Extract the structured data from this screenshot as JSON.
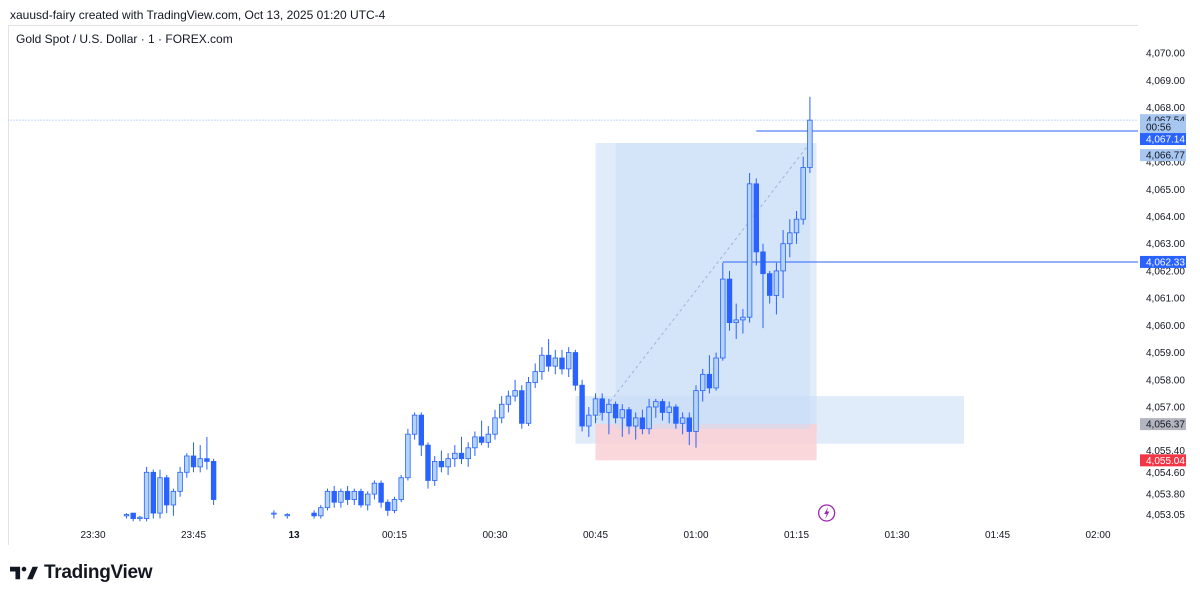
{
  "header": {
    "attribution": "xauusd-fairy created with TradingView.com, Oct 13, 2025 01:20 UTC-4",
    "symbol": "Gold Spot / U.S. Dollar · 1 · FOREX.com"
  },
  "footer": {
    "logo_text": "TradingView"
  },
  "colors": {
    "bull": "#b3d4f5",
    "bull_border": "#2962ff",
    "bear": "#2962ff",
    "zone_blue": "#c9ddf7",
    "zone_red": "#f9d0d4",
    "line_blue": "#2962ff",
    "badge_gray": "#b2b5be",
    "badge_red": "#f23645"
  },
  "chart_data": {
    "type": "candlestick",
    "ylim": [
      4052.7,
      4071.0
    ],
    "y_ticks": [
      "4,070.00",
      "4,069.00",
      "4,068.00",
      "4,066.00",
      "4,065.00",
      "4,064.00",
      "4,063.00",
      "4,062.00",
      "4,061.00",
      "4,060.00",
      "4,059.00",
      "4,058.00",
      "4,057.00",
      "4,055.40",
      "4,054.60",
      "4,053.80",
      "4,053.05"
    ],
    "y_tick_values": [
      4070,
      4069,
      4068,
      4066,
      4065,
      4064,
      4063,
      4062,
      4061,
      4060,
      4059,
      4058,
      4057,
      4055.4,
      4054.6,
      4053.8,
      4053.05
    ],
    "x_ticks": [
      "23:30",
      "23:45",
      "13",
      "00:15",
      "00:30",
      "00:45",
      "01:00",
      "01:15",
      "01:30",
      "01:45",
      "02:00"
    ],
    "x_tick_minutes": [
      -30,
      -15,
      0,
      15,
      30,
      45,
      60,
      75,
      90,
      105,
      120
    ],
    "price_labels": [
      {
        "text": "4,067.54",
        "value": 4067.54,
        "style": "current"
      },
      {
        "text": "00:56",
        "value": 4067.14,
        "style": "countdown",
        "offset": "below"
      },
      {
        "text": "4,067.14",
        "value": 4067.14,
        "style": "line"
      },
      {
        "text": "4,066.77",
        "value": 4066.77,
        "style": "current-light"
      },
      {
        "text": "4,062.33",
        "value": 4062.33,
        "style": "line"
      },
      {
        "text": "4,056.37",
        "value": 4056.37,
        "style": "gray"
      },
      {
        "text": "4,055.04",
        "value": 4055.04,
        "style": "red"
      }
    ],
    "horizontal_lines": [
      {
        "value": 4067.54,
        "from_minute": -45,
        "style": "dotted"
      },
      {
        "value": 4067.14,
        "from_minute": 69,
        "style": "solid"
      },
      {
        "value": 4062.33,
        "from_minute": 64,
        "style": "solid"
      }
    ],
    "zones": [
      {
        "kind": "blue",
        "from_minute": 45,
        "to_minute": 78,
        "top": 4066.7,
        "bottom": 4056.2
      },
      {
        "kind": "blue",
        "from_minute": 42,
        "to_minute": 100,
        "top": 4057.4,
        "bottom": 4055.65
      },
      {
        "kind": "red",
        "from_minute": 45,
        "to_minute": 78,
        "top": 4056.37,
        "bottom": 4055.04
      }
    ],
    "candles": [
      {
        "t": -25,
        "o": 4053.0,
        "h": 4053.1,
        "l": 4052.9,
        "c": 4053.05
      },
      {
        "t": -24,
        "o": 4053.1,
        "h": 4053.1,
        "l": 4052.8,
        "c": 4052.9
      },
      {
        "t": -23,
        "o": 4052.9,
        "h": 4053.0,
        "l": 4052.8,
        "c": 4052.95
      },
      {
        "t": -22,
        "o": 4052.9,
        "h": 4054.8,
        "l": 4052.8,
        "c": 4054.6
      },
      {
        "t": -21,
        "o": 4054.6,
        "h": 4054.7,
        "l": 4052.9,
        "c": 4053.1
      },
      {
        "t": -20,
        "o": 4053.1,
        "h": 4054.7,
        "l": 4052.9,
        "c": 4054.4
      },
      {
        "t": -19,
        "o": 4054.4,
        "h": 4054.5,
        "l": 4053.1,
        "c": 4053.4
      },
      {
        "t": -18,
        "o": 4053.4,
        "h": 4054.0,
        "l": 4053.0,
        "c": 4053.9
      },
      {
        "t": -17,
        "o": 4053.9,
        "h": 4054.8,
        "l": 4053.7,
        "c": 4054.6
      },
      {
        "t": -16,
        "o": 4054.6,
        "h": 4055.3,
        "l": 4054.4,
        "c": 4055.2
      },
      {
        "t": -15,
        "o": 4055.2,
        "h": 4055.7,
        "l": 4054.6,
        "c": 4054.8
      },
      {
        "t": -14,
        "o": 4054.8,
        "h": 4055.6,
        "l": 4054.6,
        "c": 4055.1
      },
      {
        "t": -13,
        "o": 4055.1,
        "h": 4055.9,
        "l": 4054.7,
        "c": 4055.0
      },
      {
        "t": -12,
        "o": 4055.0,
        "h": 4055.1,
        "l": 4053.4,
        "c": 4053.6
      },
      {
        "t": -3,
        "o": 4053.1,
        "h": 4053.2,
        "l": 4052.9,
        "c": 4053.1
      },
      {
        "t": -1,
        "o": 4053.0,
        "h": 4053.1,
        "l": 4052.9,
        "c": 4053.05
      },
      {
        "t": 3,
        "o": 4053.1,
        "h": 4053.2,
        "l": 4052.9,
        "c": 4053.0
      },
      {
        "t": 4,
        "o": 4053.0,
        "h": 4053.4,
        "l": 4052.9,
        "c": 4053.3
      },
      {
        "t": 5,
        "o": 4053.3,
        "h": 4054.0,
        "l": 4053.2,
        "c": 4053.9
      },
      {
        "t": 6,
        "o": 4053.9,
        "h": 4054.1,
        "l": 4053.3,
        "c": 4053.5
      },
      {
        "t": 7,
        "o": 4053.5,
        "h": 4054.0,
        "l": 4053.3,
        "c": 4053.9
      },
      {
        "t": 8,
        "o": 4053.9,
        "h": 4054.1,
        "l": 4053.4,
        "c": 4053.6
      },
      {
        "t": 9,
        "o": 4053.6,
        "h": 4054.0,
        "l": 4053.4,
        "c": 4053.9
      },
      {
        "t": 10,
        "o": 4053.9,
        "h": 4054.0,
        "l": 4053.3,
        "c": 4053.4
      },
      {
        "t": 11,
        "o": 4053.4,
        "h": 4053.9,
        "l": 4053.2,
        "c": 4053.8
      },
      {
        "t": 12,
        "o": 4053.8,
        "h": 4054.3,
        "l": 4053.6,
        "c": 4054.2
      },
      {
        "t": 13,
        "o": 4054.2,
        "h": 4054.3,
        "l": 4053.3,
        "c": 4053.5
      },
      {
        "t": 14,
        "o": 4053.5,
        "h": 4053.6,
        "l": 4053.0,
        "c": 4053.2
      },
      {
        "t": 15,
        "o": 4053.2,
        "h": 4053.7,
        "l": 4053.1,
        "c": 4053.6
      },
      {
        "t": 16,
        "o": 4053.6,
        "h": 4054.5,
        "l": 4053.5,
        "c": 4054.4
      },
      {
        "t": 17,
        "o": 4054.4,
        "h": 4056.2,
        "l": 4054.3,
        "c": 4056.0
      },
      {
        "t": 18,
        "o": 4056.0,
        "h": 4056.8,
        "l": 4055.8,
        "c": 4056.7
      },
      {
        "t": 19,
        "o": 4056.7,
        "h": 4056.8,
        "l": 4055.2,
        "c": 4055.6
      },
      {
        "t": 20,
        "o": 4055.6,
        "h": 4055.7,
        "l": 4054.0,
        "c": 4054.3
      },
      {
        "t": 21,
        "o": 4054.3,
        "h": 4055.2,
        "l": 4054.1,
        "c": 4055.0
      },
      {
        "t": 22,
        "o": 4055.0,
        "h": 4055.4,
        "l": 4054.6,
        "c": 4054.8
      },
      {
        "t": 23,
        "o": 4054.8,
        "h": 4055.3,
        "l": 4054.5,
        "c": 4055.1
      },
      {
        "t": 24,
        "o": 4055.1,
        "h": 4055.6,
        "l": 4054.8,
        "c": 4055.3
      },
      {
        "t": 25,
        "o": 4055.3,
        "h": 4055.9,
        "l": 4054.9,
        "c": 4055.1
      },
      {
        "t": 26,
        "o": 4055.1,
        "h": 4055.7,
        "l": 4054.8,
        "c": 4055.5
      },
      {
        "t": 27,
        "o": 4055.5,
        "h": 4056.1,
        "l": 4055.2,
        "c": 4055.9
      },
      {
        "t": 28,
        "o": 4055.9,
        "h": 4056.5,
        "l": 4055.6,
        "c": 4055.7
      },
      {
        "t": 29,
        "o": 4055.7,
        "h": 4056.3,
        "l": 4055.5,
        "c": 4056.0
      },
      {
        "t": 30,
        "o": 4056.0,
        "h": 4056.9,
        "l": 4055.8,
        "c": 4056.6
      },
      {
        "t": 31,
        "o": 4056.6,
        "h": 4057.4,
        "l": 4056.4,
        "c": 4057.1
      },
      {
        "t": 32,
        "o": 4057.1,
        "h": 4057.6,
        "l": 4056.8,
        "c": 4057.4
      },
      {
        "t": 33,
        "o": 4057.4,
        "h": 4058.0,
        "l": 4057.2,
        "c": 4057.6
      },
      {
        "t": 34,
        "o": 4057.6,
        "h": 4057.8,
        "l": 4056.2,
        "c": 4056.4
      },
      {
        "t": 35,
        "o": 4056.4,
        "h": 4058.1,
        "l": 4056.3,
        "c": 4057.9
      },
      {
        "t": 36,
        "o": 4057.9,
        "h": 4058.6,
        "l": 4057.7,
        "c": 4058.3
      },
      {
        "t": 37,
        "o": 4058.3,
        "h": 4059.2,
        "l": 4058.0,
        "c": 4058.9
      },
      {
        "t": 38,
        "o": 4058.9,
        "h": 4059.5,
        "l": 4058.3,
        "c": 4058.5
      },
      {
        "t": 39,
        "o": 4058.5,
        "h": 4059.1,
        "l": 4058.2,
        "c": 4058.8
      },
      {
        "t": 40,
        "o": 4058.8,
        "h": 4059.1,
        "l": 4058.2,
        "c": 4058.4
      },
      {
        "t": 41,
        "o": 4058.4,
        "h": 4059.2,
        "l": 4058.1,
        "c": 4059.0
      },
      {
        "t": 42,
        "o": 4059.0,
        "h": 4059.1,
        "l": 4057.6,
        "c": 4057.8
      },
      {
        "t": 43,
        "o": 4057.8,
        "h": 4058.0,
        "l": 4056.1,
        "c": 4056.3
      },
      {
        "t": 44,
        "o": 4056.3,
        "h": 4057.0,
        "l": 4055.9,
        "c": 4056.7
      },
      {
        "t": 45,
        "o": 4056.7,
        "h": 4057.5,
        "l": 4056.4,
        "c": 4057.3
      },
      {
        "t": 46,
        "o": 4057.3,
        "h": 4057.5,
        "l": 4056.5,
        "c": 4056.8
      },
      {
        "t": 47,
        "o": 4056.8,
        "h": 4057.3,
        "l": 4056.0,
        "c": 4057.1
      },
      {
        "t": 48,
        "o": 4057.1,
        "h": 4057.2,
        "l": 4056.4,
        "c": 4056.6
      },
      {
        "t": 49,
        "o": 4056.6,
        "h": 4057.1,
        "l": 4055.9,
        "c": 4056.9
      },
      {
        "t": 50,
        "o": 4056.9,
        "h": 4057.0,
        "l": 4056.0,
        "c": 4056.3
      },
      {
        "t": 51,
        "o": 4056.3,
        "h": 4056.8,
        "l": 4055.8,
        "c": 4056.6
      },
      {
        "t": 52,
        "o": 4056.6,
        "h": 4056.9,
        "l": 4056.0,
        "c": 4056.2
      },
      {
        "t": 53,
        "o": 4056.2,
        "h": 4057.3,
        "l": 4056.0,
        "c": 4057.0
      },
      {
        "t": 54,
        "o": 4057.0,
        "h": 4057.3,
        "l": 4056.6,
        "c": 4057.2
      },
      {
        "t": 55,
        "o": 4057.2,
        "h": 4057.3,
        "l": 4056.5,
        "c": 4056.8
      },
      {
        "t": 56,
        "o": 4056.8,
        "h": 4057.2,
        "l": 4056.4,
        "c": 4057.0
      },
      {
        "t": 57,
        "o": 4057.0,
        "h": 4057.1,
        "l": 4056.2,
        "c": 4056.4
      },
      {
        "t": 58,
        "o": 4056.4,
        "h": 4056.8,
        "l": 4056.0,
        "c": 4056.6
      },
      {
        "t": 59,
        "o": 4056.6,
        "h": 4056.8,
        "l": 4055.6,
        "c": 4056.1
      },
      {
        "t": 60,
        "o": 4056.1,
        "h": 4057.8,
        "l": 4055.5,
        "c": 4057.6
      },
      {
        "t": 61,
        "o": 4057.6,
        "h": 4058.4,
        "l": 4057.2,
        "c": 4058.2
      },
      {
        "t": 62,
        "o": 4058.2,
        "h": 4058.9,
        "l": 4057.5,
        "c": 4057.7
      },
      {
        "t": 63,
        "o": 4057.7,
        "h": 4059.0,
        "l": 4057.6,
        "c": 4058.8
      },
      {
        "t": 64,
        "o": 4058.8,
        "h": 4062.3,
        "l": 4058.7,
        "c": 4061.7
      },
      {
        "t": 65,
        "o": 4061.7,
        "h": 4062.0,
        "l": 4059.8,
        "c": 4060.1
      },
      {
        "t": 66,
        "o": 4060.1,
        "h": 4060.8,
        "l": 4059.5,
        "c": 4060.2
      },
      {
        "t": 67,
        "o": 4060.2,
        "h": 4060.6,
        "l": 4059.7,
        "c": 4060.3
      },
      {
        "t": 68,
        "o": 4060.3,
        "h": 4065.6,
        "l": 4060.1,
        "c": 4065.2
      },
      {
        "t": 69,
        "o": 4065.2,
        "h": 4065.4,
        "l": 4062.2,
        "c": 4062.7
      },
      {
        "t": 70,
        "o": 4062.7,
        "h": 4063.0,
        "l": 4059.9,
        "c": 4061.9
      },
      {
        "t": 71,
        "o": 4061.9,
        "h": 4062.0,
        "l": 4060.8,
        "c": 4061.1
      },
      {
        "t": 72,
        "o": 4061.1,
        "h": 4062.3,
        "l": 4060.4,
        "c": 4062.0
      },
      {
        "t": 73,
        "o": 4062.0,
        "h": 4063.5,
        "l": 4061.0,
        "c": 4063.0
      },
      {
        "t": 74,
        "o": 4063.0,
        "h": 4063.9,
        "l": 4062.5,
        "c": 4063.4
      },
      {
        "t": 75,
        "o": 4063.4,
        "h": 4064.2,
        "l": 4063.0,
        "c": 4063.9
      },
      {
        "t": 76,
        "o": 4063.9,
        "h": 4066.2,
        "l": 4063.7,
        "c": 4065.8
      },
      {
        "t": 77,
        "o": 4065.8,
        "h": 4068.4,
        "l": 4065.6,
        "c": 4067.54
      }
    ]
  }
}
